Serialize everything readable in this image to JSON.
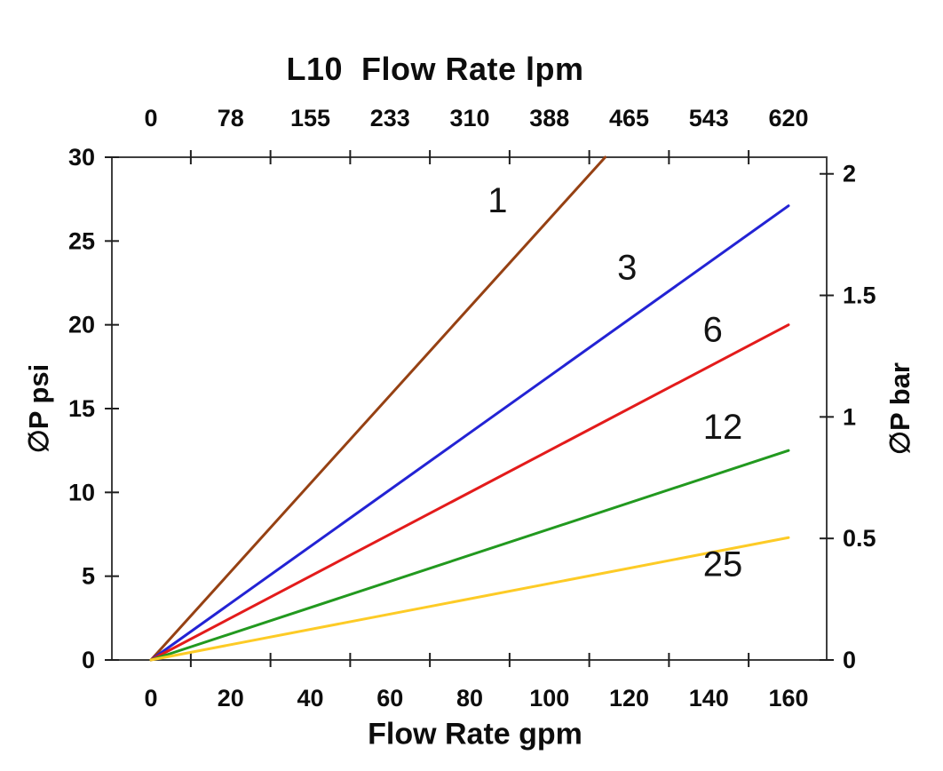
{
  "chart_data": {
    "type": "line",
    "title": "L10  Flow Rate lpm",
    "x_top": {
      "tick_labels": [
        "0",
        "78",
        "155",
        "233",
        "310",
        "388",
        "465",
        "543",
        "620"
      ],
      "unit": "lpm"
    },
    "x_bottom": {
      "label": "Flow Rate gpm",
      "tick_labels": [
        "0",
        "20",
        "40",
        "60",
        "80",
        "100",
        "120",
        "140",
        "160"
      ],
      "minor_ticks_gpm": [
        10,
        30,
        50,
        70,
        90,
        110,
        130,
        150
      ],
      "range": [
        0,
        160
      ]
    },
    "y_left": {
      "label": "∅P psi",
      "ticks": [
        0,
        5,
        10,
        15,
        20,
        25,
        30
      ],
      "range": [
        0,
        30
      ]
    },
    "y_right": {
      "label": "∅P bar",
      "ticks": [
        {
          "value": 0,
          "label": "0"
        },
        {
          "value": 0.5,
          "label": "0.5"
        },
        {
          "value": 1,
          "label": "1"
        },
        {
          "value": 1.5,
          "label": "1.5"
        },
        {
          "value": 2,
          "label": "2"
        }
      ],
      "psi_per_bar": 14.504
    },
    "series": [
      {
        "name": "1",
        "color": "#964113",
        "points": [
          [
            0,
            0
          ],
          [
            114,
            30
          ]
        ],
        "label_at": [
          87,
          27.4
        ]
      },
      {
        "name": "3",
        "color": "#2323d4",
        "points": [
          [
            0,
            0
          ],
          [
            160,
            27.1
          ]
        ],
        "label_at": [
          119.5,
          23.4
        ]
      },
      {
        "name": "6",
        "color": "#e31b1b",
        "points": [
          [
            0,
            0
          ],
          [
            160,
            20
          ]
        ],
        "label_at": [
          141,
          19.7
        ]
      },
      {
        "name": "12",
        "color": "#22991f",
        "points": [
          [
            0,
            0
          ],
          [
            160,
            12.5
          ]
        ],
        "label_at": [
          143.5,
          13.9
        ]
      },
      {
        "name": "25",
        "color": "#fdcb26",
        "points": [
          [
            0,
            0
          ],
          [
            160,
            7.3
          ]
        ],
        "label_at": [
          143.5,
          5.7
        ]
      }
    ],
    "grid": false
  }
}
